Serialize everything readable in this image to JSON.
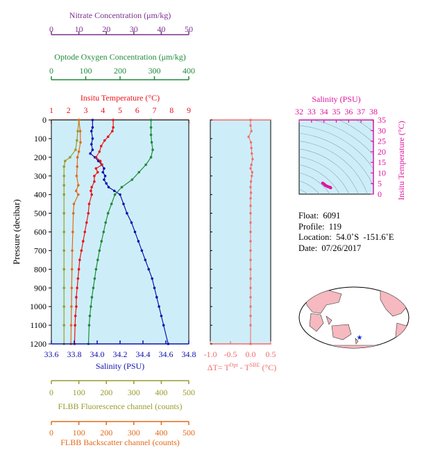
{
  "chart_data": [
    {
      "type": "line",
      "pressure_axis": {
        "label": "Pressure (decibar)",
        "range": [
          0,
          1200
        ],
        "ticks": [
          "0",
          "100",
          "200",
          "300",
          "400",
          "500",
          "600",
          "700",
          "800",
          "900",
          "1000",
          "1100",
          "1200"
        ]
      },
      "axes": {
        "nitrate": {
          "label": "Nitrate Concentration (μm/kg)",
          "range": [
            0,
            50
          ],
          "ticks": [
            "0",
            "10",
            "20",
            "30",
            "40",
            "50"
          ],
          "color": "#7b2f8e"
        },
        "oxygen": {
          "label": "Optode Oxygen Concentration (μm/kg)",
          "range": [
            0,
            400
          ],
          "ticks": [
            "0",
            "100",
            "200",
            "300",
            "400"
          ],
          "color": "#1f8a3a"
        },
        "temperature": {
          "label": "Insitu Temperature (°C)",
          "range": [
            1,
            9
          ],
          "ticks": [
            "1",
            "2",
            "3",
            "4",
            "5",
            "6",
            "7",
            "8",
            "9"
          ],
          "color": "#e8141b"
        },
        "salinity": {
          "label": "Salinity (PSU)",
          "range": [
            33.6,
            34.8
          ],
          "ticks": [
            "33.6",
            "33.8",
            "34.0",
            "34.2",
            "34.4",
            "34.6",
            "34.8"
          ],
          "color": "#1010b0"
        },
        "fluorescence": {
          "label": "FLBB Fluorescence channel (counts)",
          "range": [
            0,
            500
          ],
          "ticks": [
            "0",
            "100",
            "200",
            "300",
            "400",
            "500"
          ],
          "color": "#9a9a2e"
        },
        "backscatter": {
          "label": "FLBB Backscatter channel (counts)",
          "range": [
            0,
            500
          ],
          "ticks": [
            "0",
            "100",
            "200",
            "300",
            "400",
            "500"
          ],
          "color": "#e06a1a"
        }
      },
      "series": [
        {
          "key": "salinity",
          "color": "#1010b0",
          "points": [
            [
              33.96,
              0
            ],
            [
              33.96,
              40
            ],
            [
              33.95,
              60
            ],
            [
              33.96,
              100
            ],
            [
              33.95,
              130
            ],
            [
              33.96,
              160
            ],
            [
              33.94,
              180
            ],
            [
              33.98,
              200
            ],
            [
              34.01,
              220
            ],
            [
              34.04,
              240
            ],
            [
              34.06,
              260
            ],
            [
              34.05,
              280
            ],
            [
              34.07,
              300
            ],
            [
              34.06,
              320
            ],
            [
              34.08,
              340
            ],
            [
              34.1,
              360
            ],
            [
              34.15,
              380
            ],
            [
              34.2,
              400
            ],
            [
              34.23,
              450
            ],
            [
              34.26,
              500
            ],
            [
              34.3,
              550
            ],
            [
              34.33,
              600
            ],
            [
              34.36,
              650
            ],
            [
              34.39,
              700
            ],
            [
              34.42,
              750
            ],
            [
              34.45,
              800
            ],
            [
              34.48,
              850
            ],
            [
              34.5,
              900
            ],
            [
              34.52,
              950
            ],
            [
              34.54,
              1000
            ],
            [
              34.56,
              1050
            ],
            [
              34.58,
              1100
            ],
            [
              34.62,
              1200
            ]
          ]
        },
        {
          "key": "temperature",
          "color": "#e8141b",
          "points": [
            [
              4.6,
              0
            ],
            [
              4.6,
              40
            ],
            [
              4.55,
              60
            ],
            [
              4.3,
              90
            ],
            [
              4.1,
              110
            ],
            [
              3.9,
              140
            ],
            [
              3.8,
              170
            ],
            [
              3.6,
              200
            ],
            [
              3.85,
              220
            ],
            [
              3.95,
              240
            ],
            [
              3.6,
              260
            ],
            [
              3.7,
              280
            ],
            [
              3.5,
              300
            ],
            [
              3.5,
              330
            ],
            [
              3.35,
              360
            ],
            [
              3.3,
              380
            ],
            [
              3.35,
              400
            ],
            [
              3.2,
              450
            ],
            [
              3.15,
              500
            ],
            [
              3.05,
              550
            ],
            [
              2.95,
              600
            ],
            [
              2.85,
              650
            ],
            [
              2.75,
              700
            ],
            [
              2.65,
              750
            ],
            [
              2.6,
              800
            ],
            [
              2.55,
              850
            ],
            [
              2.5,
              900
            ],
            [
              2.45,
              950
            ],
            [
              2.45,
              1000
            ],
            [
              2.4,
              1050
            ],
            [
              2.38,
              1100
            ],
            [
              2.35,
              1200
            ]
          ]
        },
        {
          "key": "oxygen",
          "color": "#1f8a3a",
          "points": [
            [
              290,
              0
            ],
            [
              290,
              40
            ],
            [
              290,
              80
            ],
            [
              292,
              120
            ],
            [
              295,
              160
            ],
            [
              290,
              200
            ],
            [
              275,
              240
            ],
            [
              255,
              280
            ],
            [
              235,
              320
            ],
            [
              205,
              360
            ],
            [
              185,
              400
            ],
            [
              175,
              450
            ],
            [
              165,
              500
            ],
            [
              158,
              550
            ],
            [
              152,
              600
            ],
            [
              146,
              650
            ],
            [
              140,
              700
            ],
            [
              135,
              750
            ],
            [
              130,
              800
            ],
            [
              126,
              850
            ],
            [
              122,
              900
            ],
            [
              118,
              950
            ],
            [
              115,
              1000
            ],
            [
              112,
              1050
            ],
            [
              110,
              1100
            ],
            [
              108,
              1200
            ]
          ]
        },
        {
          "key": "fluorescence",
          "color": "#9a9a2e",
          "points": [
            [
              100,
              0
            ],
            [
              96,
              60
            ],
            [
              93,
              110
            ],
            [
              88,
              160
            ],
            [
              68,
              200
            ],
            [
              50,
              220
            ],
            [
              46,
              250
            ],
            [
              46,
              300
            ],
            [
              46,
              350
            ],
            [
              46,
              400
            ],
            [
              46,
              500
            ],
            [
              46,
              600
            ],
            [
              46,
              700
            ],
            [
              46,
              800
            ],
            [
              46,
              900
            ],
            [
              46,
              1000
            ],
            [
              46,
              1100
            ],
            [
              46,
              1200
            ]
          ]
        },
        {
          "key": "backscatter",
          "color": "#e06a1a",
          "points": [
            [
              100,
              0
            ],
            [
              105,
              60
            ],
            [
              106,
              120
            ],
            [
              100,
              170
            ],
            [
              95,
              200
            ],
            [
              94,
              250
            ],
            [
              92,
              300
            ],
            [
              98,
              350
            ],
            [
              90,
              380
            ],
            [
              98,
              400
            ],
            [
              82,
              450
            ],
            [
              80,
              500
            ],
            [
              78,
              600
            ],
            [
              76,
              700
            ],
            [
              75,
              800
            ],
            [
              74,
              900
            ],
            [
              73,
              1000
            ],
            [
              72,
              1100
            ],
            [
              71,
              1200
            ]
          ]
        }
      ]
    },
    {
      "type": "scatter",
      "xlabel": "ΔT= T^Opt - T^SBE (°C)",
      "xlim": [
        -1.0,
        0.5
      ],
      "ticks": [
        "-1.0",
        "-0.5",
        "0.0",
        "0.5"
      ],
      "color": "#f26b6b",
      "points": [
        [
          0.0,
          0
        ],
        [
          0.0,
          30
        ],
        [
          0.02,
          60
        ],
        [
          -0.05,
          90
        ],
        [
          0.01,
          120
        ],
        [
          0.02,
          150
        ],
        [
          0.03,
          180
        ],
        [
          0.05,
          210
        ],
        [
          0.02,
          240
        ],
        [
          0.0,
          260
        ],
        [
          0.04,
          280
        ],
        [
          0.03,
          300
        ],
        [
          0.01,
          330
        ],
        [
          0.0,
          360
        ],
        [
          0.01,
          390
        ],
        [
          0.0,
          420
        ],
        [
          0.0,
          460
        ],
        [
          0.0,
          500
        ],
        [
          0.0,
          550
        ],
        [
          0.0,
          600
        ],
        [
          0.0,
          650
        ],
        [
          0.0,
          700
        ],
        [
          0.0,
          750
        ],
        [
          0.0,
          800
        ],
        [
          0.0,
          850
        ],
        [
          0.0,
          900
        ],
        [
          0.0,
          950
        ],
        [
          0.0,
          1000
        ],
        [
          0.0,
          1050
        ],
        [
          0.0,
          1100
        ],
        [
          0.0,
          1200
        ]
      ]
    },
    {
      "type": "scatter",
      "title": "Salinity (PSU)",
      "xlim": [
        32,
        38
      ],
      "ylim": [
        0,
        35
      ],
      "xticks": [
        "32",
        "33",
        "34",
        "35",
        "36",
        "37",
        "38"
      ],
      "yticks": [
        "0",
        "5",
        "10",
        "15",
        "20",
        "25",
        "30",
        "35"
      ],
      "ylabel": "Insitu Temperature (°C)",
      "color": "#e0149e",
      "points": [
        [
          33.9,
          5.2
        ],
        [
          34.0,
          4.8
        ],
        [
          34.05,
          4.5
        ],
        [
          34.1,
          4.2
        ],
        [
          34.2,
          3.9
        ],
        [
          34.3,
          3.6
        ],
        [
          34.4,
          3.4
        ],
        [
          34.5,
          3.2
        ],
        [
          34.55,
          3.0
        ]
      ]
    }
  ],
  "info": {
    "float": "Float:  6091",
    "profile": "Profile:  119",
    "location": "Location:  54.0˚S  -151.6˚E",
    "date": "Date:  07/26/2017"
  },
  "colors": {
    "plot_bg": "#cdeef8",
    "land": "#f5b9bf",
    "ocean": "#ffffff",
    "star": "#1a2ad8"
  }
}
